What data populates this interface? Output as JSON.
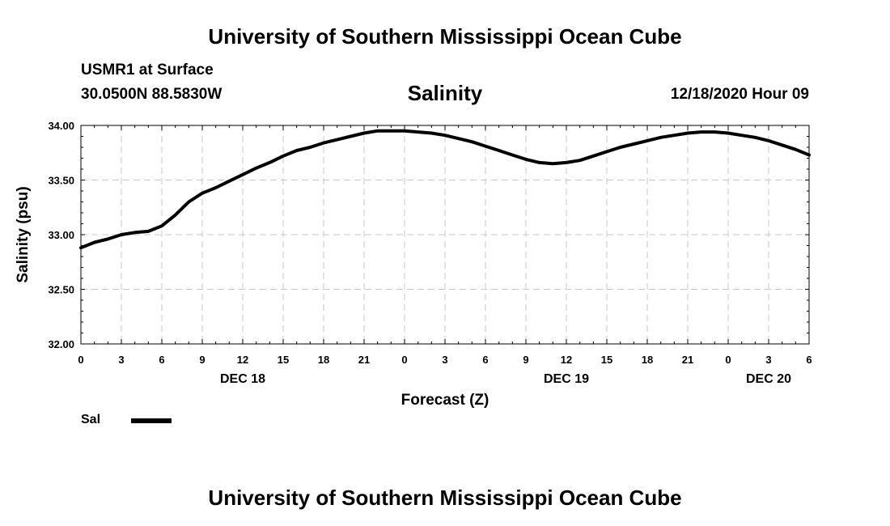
{
  "header": {
    "title": "University of Southern Mississippi Ocean Cube",
    "station": "USMR1 at Surface",
    "coords": "30.0500N 88.5830W",
    "issued": "12/18/2020 Hour 09"
  },
  "footer": {
    "title": "University of Southern Mississippi Ocean Cube"
  },
  "legend": {
    "label": "Sal"
  },
  "chart_data": {
    "type": "line",
    "title": "Salinity",
    "xlabel": "Forecast (Z)",
    "ylabel": "Salinity (psu)",
    "xlim": [
      0,
      54
    ],
    "ylim": [
      32.0,
      34.0
    ],
    "grid": true,
    "y_ticks": [
      "32.00",
      "32.50",
      "33.00",
      "33.50",
      "34.00"
    ],
    "x_ticks": [
      {
        "x": 0,
        "label": "0"
      },
      {
        "x": 3,
        "label": "3"
      },
      {
        "x": 6,
        "label": "6"
      },
      {
        "x": 9,
        "label": "9"
      },
      {
        "x": 12,
        "label": "12"
      },
      {
        "x": 15,
        "label": "15"
      },
      {
        "x": 18,
        "label": "18"
      },
      {
        "x": 21,
        "label": "21"
      },
      {
        "x": 24,
        "label": "0"
      },
      {
        "x": 27,
        "label": "3"
      },
      {
        "x": 30,
        "label": "6"
      },
      {
        "x": 33,
        "label": "9"
      },
      {
        "x": 36,
        "label": "12"
      },
      {
        "x": 39,
        "label": "15"
      },
      {
        "x": 42,
        "label": "18"
      },
      {
        "x": 45,
        "label": "21"
      },
      {
        "x": 48,
        "label": "0"
      },
      {
        "x": 51,
        "label": "3"
      },
      {
        "x": 54,
        "label": "6"
      }
    ],
    "date_labels": [
      {
        "x": 12,
        "label": "DEC 18"
      },
      {
        "x": 36,
        "label": "DEC 19"
      },
      {
        "x": 51,
        "label": "DEC 20"
      }
    ],
    "series": [
      {
        "name": "Sal",
        "x": [
          0,
          1,
          2,
          3,
          4,
          5,
          6,
          7,
          8,
          9,
          10,
          11,
          12,
          13,
          14,
          15,
          16,
          17,
          18,
          19,
          20,
          21,
          22,
          23,
          24,
          25,
          26,
          27,
          28,
          29,
          30,
          31,
          32,
          33,
          34,
          35,
          36,
          37,
          38,
          39,
          40,
          41,
          42,
          43,
          44,
          45,
          46,
          47,
          48,
          49,
          50,
          51,
          52,
          53,
          54
        ],
        "values": [
          32.88,
          32.93,
          32.96,
          33.0,
          33.02,
          33.03,
          33.08,
          33.18,
          33.3,
          33.38,
          33.43,
          33.49,
          33.55,
          33.61,
          33.66,
          33.72,
          33.77,
          33.8,
          33.84,
          33.87,
          33.9,
          33.93,
          33.95,
          33.95,
          33.95,
          33.94,
          33.93,
          33.91,
          33.88,
          33.85,
          33.81,
          33.77,
          33.73,
          33.69,
          33.66,
          33.65,
          33.66,
          33.68,
          33.72,
          33.76,
          33.8,
          33.83,
          33.86,
          33.89,
          33.91,
          33.93,
          33.94,
          33.94,
          33.93,
          33.91,
          33.89,
          33.86,
          33.82,
          33.78,
          33.73
        ]
      }
    ]
  }
}
